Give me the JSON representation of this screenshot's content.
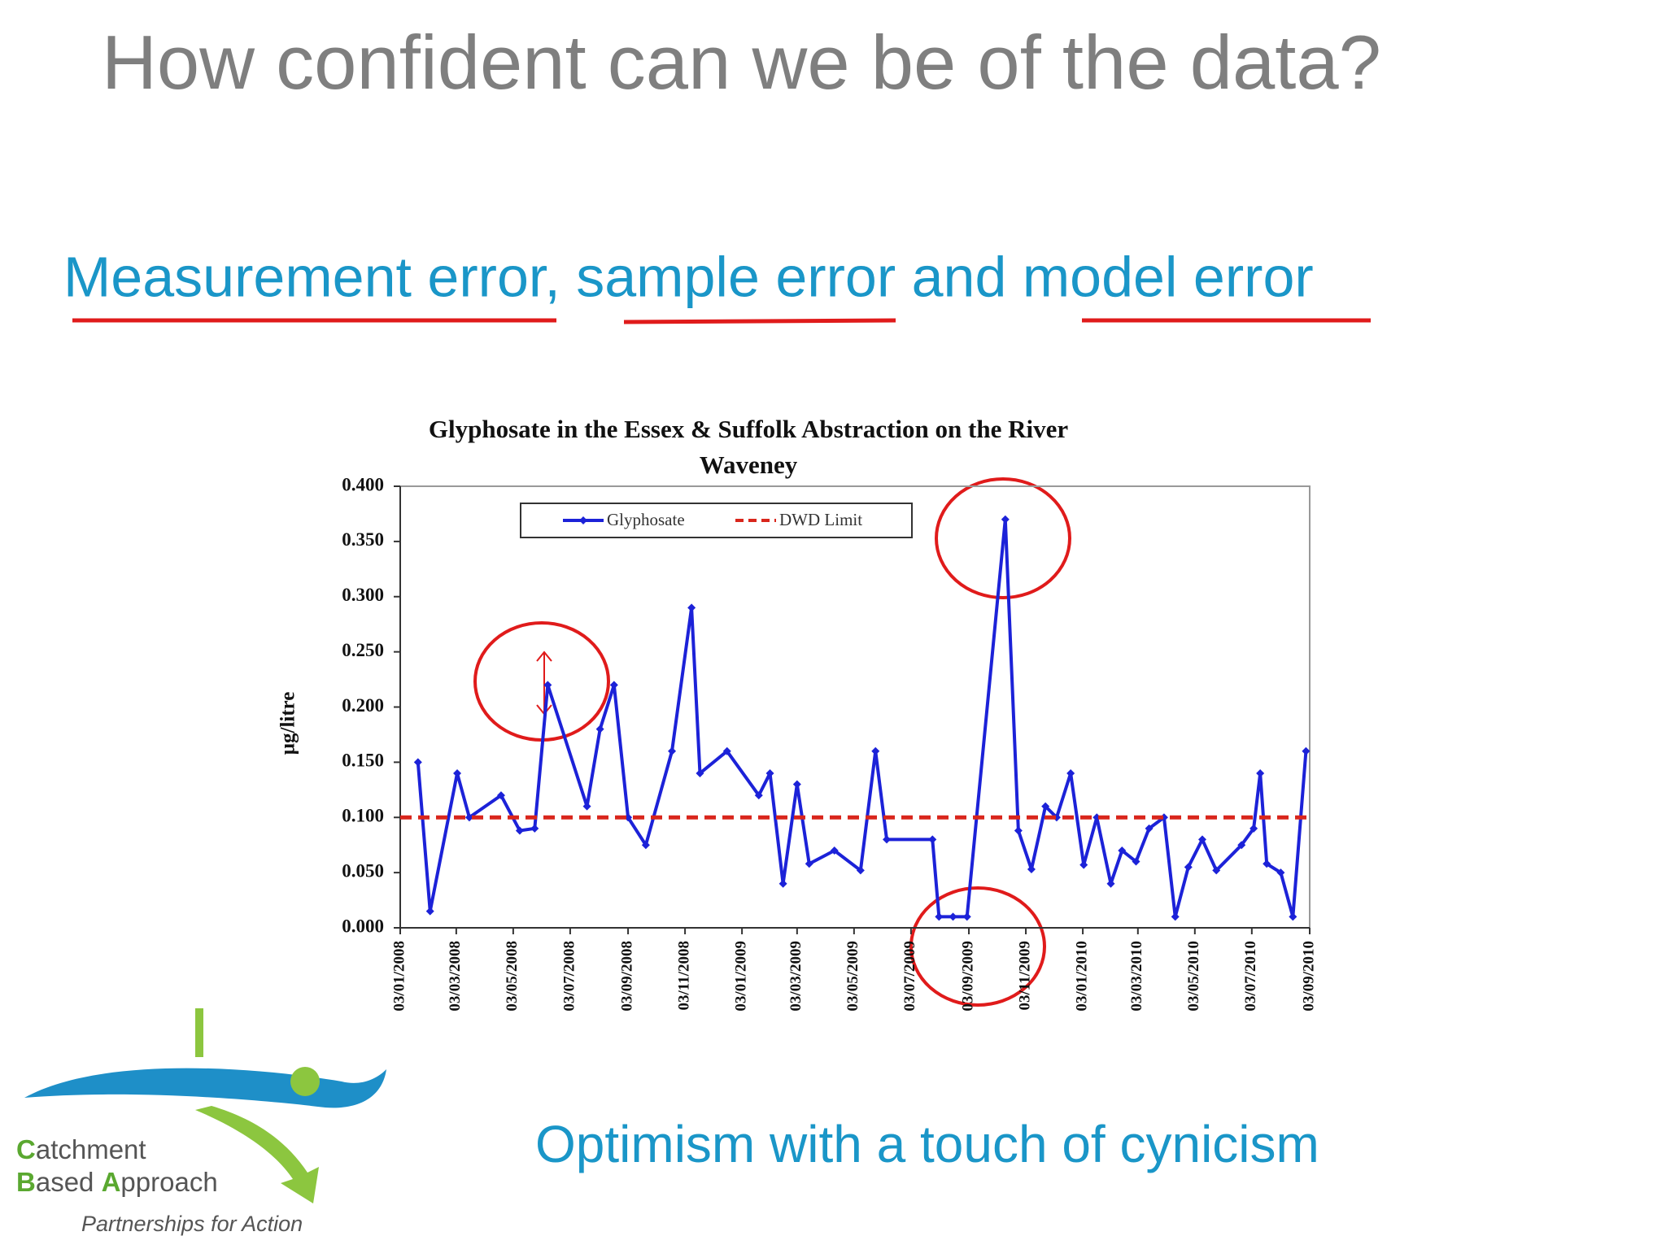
{
  "slide": {
    "title": "How confident can we be of the data?",
    "subtitle": "Measurement error, sample error and model error",
    "footer": "Optimism with a touch of cynicism",
    "logo": {
      "lines": [
        "Catchment",
        "Based",
        "Approach"
      ],
      "tagline": "Partnerships for Action"
    }
  },
  "chart_data": {
    "type": "line",
    "title": "Glyphosate in the Essex & Suffolk Abstraction on the River Waveney",
    "ylabel": "µg/litre",
    "legend": "top",
    "series": [
      {
        "name": "Glyphosate",
        "color": "#1c22d8",
        "marker": "diamond",
        "x": [
          "22/01/2008",
          "04/02/2008",
          "04/03/2008",
          "17/03/2008",
          "20/04/2008",
          "10/05/2008",
          "26/05/2008",
          "09/06/2008",
          "21/07/2008",
          "04/08/2008",
          "19/08/2008",
          "03/09/2008",
          "22/09/2008",
          "20/10/2008",
          "10/11/2008",
          "19/11/2008",
          "18/12/2008",
          "21/01/2009",
          "02/02/2009",
          "16/02/2009",
          "03/03/2009",
          "16/03/2009",
          "12/04/2009",
          "10/05/2009",
          "26/05/2009",
          "07/06/2009",
          "26/07/2009",
          "02/08/2009",
          "17/08/2009",
          "01/09/2009",
          "12/10/2009",
          "26/10/2009",
          "09/11/2009",
          "24/11/2009",
          "06/12/2009",
          "21/12/2009",
          "04/01/2010",
          "18/01/2010",
          "02/02/2010",
          "14/02/2010",
          "01/03/2010",
          "15/03/2010",
          "31/03/2010",
          "12/04/2010",
          "26/04/2010",
          "11/05/2010",
          "26/05/2010",
          "22/06/2010",
          "05/07/2010",
          "12/07/2010",
          "19/07/2010",
          "03/08/2010",
          "16/08/2010",
          "30/08/2010"
        ],
        "values": [
          0.15,
          0.015,
          0.14,
          0.1,
          0.12,
          0.088,
          0.09,
          0.22,
          0.11,
          0.18,
          0.22,
          0.1,
          0.075,
          0.16,
          0.29,
          0.14,
          0.16,
          0.12,
          0.14,
          0.04,
          0.13,
          0.058,
          0.07,
          0.052,
          0.16,
          0.08,
          0.08,
          0.01,
          0.01,
          0.01,
          0.37,
          0.088,
          0.053,
          0.11,
          0.1,
          0.14,
          0.057,
          0.1,
          0.04,
          0.07,
          0.06,
          0.09,
          0.1,
          0.01,
          0.055,
          0.08,
          0.052,
          0.075,
          0.09,
          0.14,
          0.058,
          0.05,
          0.01,
          0.16
        ]
      },
      {
        "name": "DWD Limit",
        "color": "#d9261c",
        "dashed": true,
        "x": [
          "03/01/2008",
          "03/09/2010"
        ],
        "values": [
          0.1,
          0.1
        ]
      }
    ],
    "xlim": [
      "03/01/2008",
      "03/09/2010"
    ],
    "xticks": [
      "03/01/2008",
      "03/03/2008",
      "03/05/2008",
      "03/07/2008",
      "03/09/2008",
      "03/11/2008",
      "03/01/2009",
      "03/03/2009",
      "03/05/2009",
      "03/07/2009",
      "03/09/2009",
      "03/11/2009",
      "03/01/2010",
      "03/03/2010",
      "03/05/2010",
      "03/07/2010",
      "03/09/2010"
    ],
    "ylim": [
      0,
      0.4
    ],
    "yticks": [
      {
        "value": 0,
        "label": "0.000"
      },
      {
        "value": 0.05,
        "label": "0.050"
      },
      {
        "value": 0.1,
        "label": "0.100"
      },
      {
        "value": 0.15,
        "label": "0.150"
      },
      {
        "value": 0.2,
        "label": "0.200"
      },
      {
        "value": 0.25,
        "label": "0.250"
      },
      {
        "value": 0.3,
        "label": "0.300"
      },
      {
        "value": 0.35,
        "label": "0.350"
      },
      {
        "value": 0.4,
        "label": "0.400"
      }
    ]
  }
}
